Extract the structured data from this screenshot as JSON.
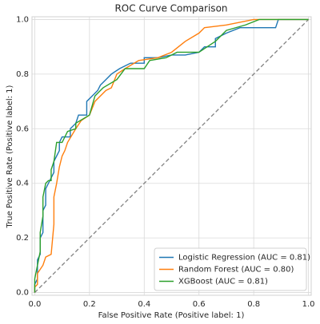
{
  "chart_data": {
    "type": "line",
    "title": "ROC Curve Comparison",
    "x_label": "False Positive Rate (Positive label: 1)",
    "y_label": "True Positive Rate (Positive label: 1)",
    "xlim": [
      -0.01,
      1.01
    ],
    "ylim": [
      -0.01,
      1.01
    ],
    "xticks": [
      {
        "value": 0,
        "label": "0.0"
      },
      0.2,
      0.4,
      0.6,
      0.8,
      {
        "value": 1,
        "label": "1.0"
      }
    ],
    "yticks": [
      {
        "value": 0,
        "label": "0.0"
      },
      0.2,
      0.4,
      0.6,
      0.8,
      {
        "value": 1,
        "label": "1.0"
      }
    ],
    "grid": true,
    "legend": "lower right",
    "series": [
      {
        "name": "Logistic Regression (AUC = 0.81)",
        "color": "#1f77b4",
        "x": [
          0,
          0,
          0.01,
          0.01,
          0.02,
          0.02,
          0.03,
          0.03,
          0.04,
          0.04,
          0.05,
          0.06,
          0.07,
          0.07,
          0.08,
          0.09,
          0.09,
          0.1,
          0.13,
          0.13,
          0.15,
          0.16,
          0.19,
          0.19,
          0.21,
          0.23,
          0.24,
          0.26,
          0.28,
          0.31,
          0.35,
          0.4,
          0.4,
          0.45,
          0.5,
          0.55,
          0.6,
          0.62,
          0.66,
          0.66,
          0.7,
          0.75,
          0.88,
          0.89,
          1
        ],
        "values": [
          0,
          0.03,
          0.05,
          0.12,
          0.14,
          0.2,
          0.22,
          0.3,
          0.32,
          0.38,
          0.4,
          0.42,
          0.44,
          0.48,
          0.5,
          0.52,
          0.55,
          0.57,
          0.57,
          0.6,
          0.62,
          0.65,
          0.65,
          0.7,
          0.72,
          0.74,
          0.76,
          0.78,
          0.8,
          0.82,
          0.84,
          0.84,
          0.86,
          0.86,
          0.87,
          0.87,
          0.88,
          0.9,
          0.9,
          0.93,
          0.95,
          0.97,
          0.97,
          1,
          1
        ]
      },
      {
        "name": "Random Forest (AUC = 0.80)",
        "color": "#ff7f0e",
        "x": [
          0,
          0,
          0.01,
          0.01,
          0.03,
          0.04,
          0.06,
          0.07,
          0.07,
          0.08,
          0.09,
          0.1,
          0.11,
          0.12,
          0.15,
          0.17,
          0.2,
          0.22,
          0.26,
          0.28,
          0.3,
          0.33,
          0.38,
          0.45,
          0.5,
          0.55,
          0.6,
          0.62,
          0.7,
          0.8,
          1
        ],
        "values": [
          0,
          0.02,
          0.03,
          0.07,
          0.1,
          0.13,
          0.14,
          0.25,
          0.35,
          0.4,
          0.46,
          0.5,
          0.52,
          0.55,
          0.6,
          0.63,
          0.65,
          0.7,
          0.74,
          0.75,
          0.8,
          0.82,
          0.85,
          0.86,
          0.88,
          0.92,
          0.95,
          0.97,
          0.98,
          1,
          1
        ]
      },
      {
        "name": "XGBoost (AUC = 0.81)",
        "color": "#2ca02c",
        "x": [
          0,
          0,
          0.01,
          0.02,
          0.02,
          0.03,
          0.03,
          0.04,
          0.05,
          0.06,
          0.06,
          0.07,
          0.08,
          0.1,
          0.12,
          0.15,
          0.15,
          0.2,
          0.22,
          0.25,
          0.3,
          0.33,
          0.4,
          0.42,
          0.48,
          0.52,
          0.6,
          0.66,
          0.7,
          0.77,
          0.82,
          1
        ],
        "values": [
          0,
          0.05,
          0.1,
          0.15,
          0.22,
          0.28,
          0.35,
          0.4,
          0.41,
          0.41,
          0.45,
          0.48,
          0.55,
          0.55,
          0.59,
          0.6,
          0.62,
          0.65,
          0.72,
          0.75,
          0.78,
          0.82,
          0.82,
          0.85,
          0.86,
          0.88,
          0.88,
          0.92,
          0.96,
          0.98,
          1,
          1
        ]
      }
    ]
  }
}
